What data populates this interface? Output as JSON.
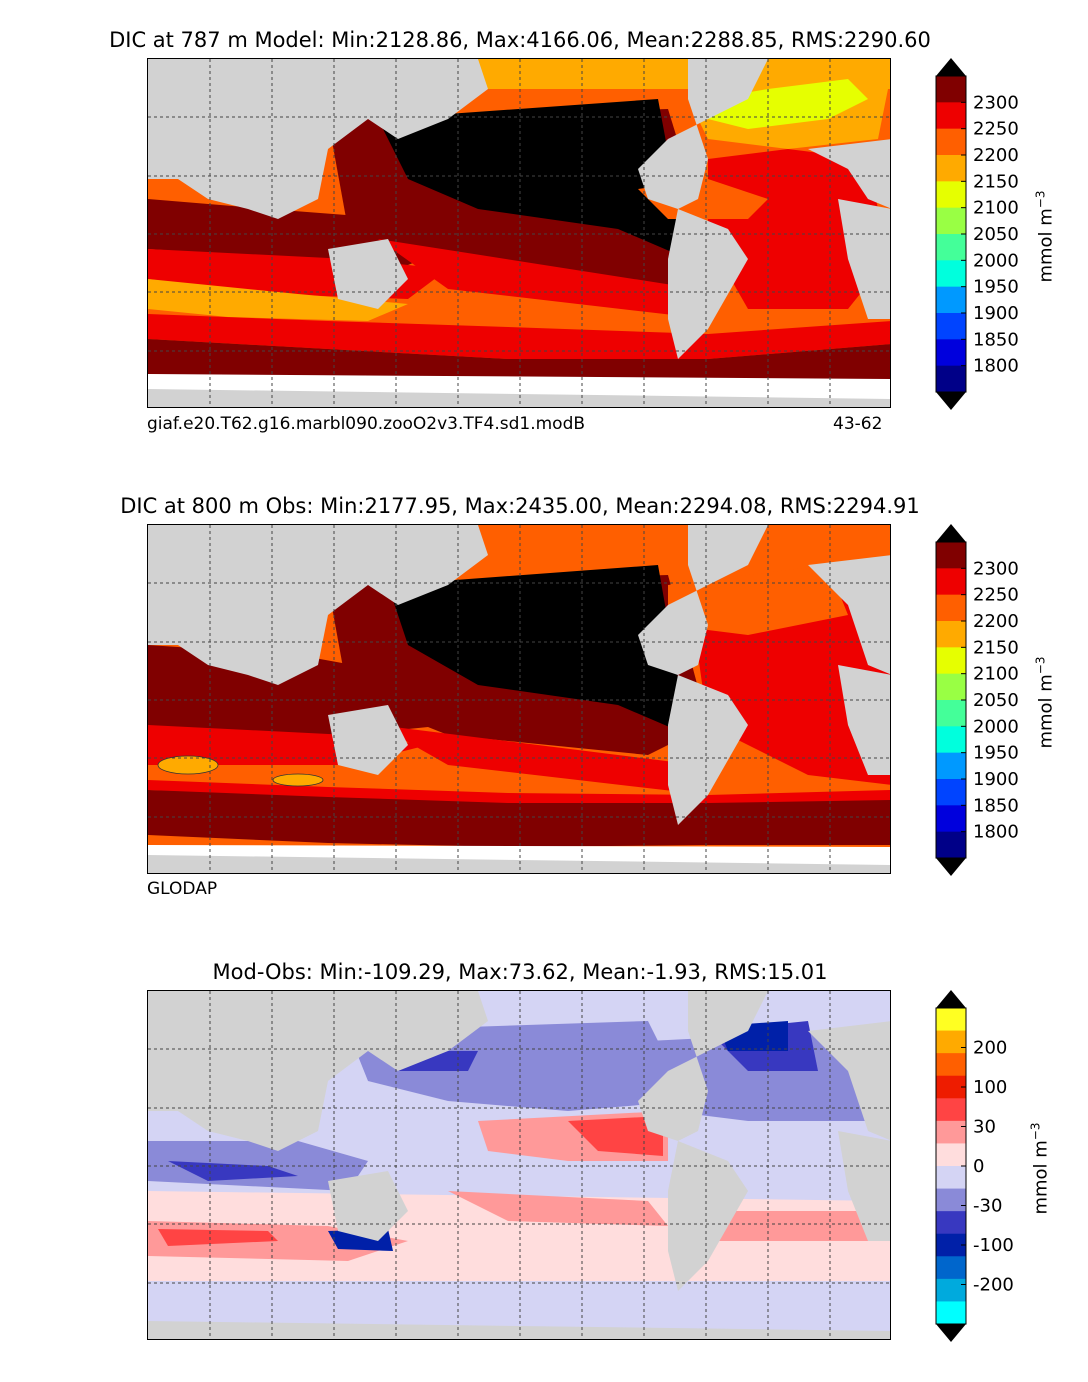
{
  "land_color": "#d2d2d2",
  "chart_data": [
    {
      "type": "heatmap",
      "title": "DIC at 787 m Model: Min:2128.86, Max:4166.06, Mean:2288.85, RMS:2290.60",
      "footer_left": "giaf.e20.T62.g16.marbl090.zooO2v3.TF4.sd1.modB",
      "footer_right": "43-62",
      "colorbar": {
        "label": "mmol m",
        "label_exp": "−3",
        "ticks": [
          "2300",
          "2250",
          "2200",
          "2150",
          "2100",
          "2050",
          "2000",
          "1950",
          "1900",
          "1850",
          "1800"
        ],
        "colors": [
          "#800000",
          "#ee0000",
          "#ff5f00",
          "#ffaa00",
          "#e6ff00",
          "#99ff44",
          "#44ff99",
          "#00ffdd",
          "#0099ff",
          "#0044ff",
          "#0000dd",
          "#000088"
        ],
        "over_color": "#000000",
        "under_color": "#000000"
      }
    },
    {
      "type": "heatmap",
      "title": "DIC at 800 m Obs: Min:2177.95, Max:2435.00, Mean:2294.08, RMS:2294.91",
      "footer_left": "GLODAP",
      "colorbar": {
        "label": "mmol m",
        "label_exp": "−3",
        "ticks": [
          "2300",
          "2250",
          "2200",
          "2150",
          "2100",
          "2050",
          "2000",
          "1950",
          "1900",
          "1850",
          "1800"
        ],
        "colors": [
          "#800000",
          "#ee0000",
          "#ff5f00",
          "#ffaa00",
          "#e6ff00",
          "#99ff44",
          "#44ff99",
          "#00ffdd",
          "#0099ff",
          "#0044ff",
          "#0000dd",
          "#000088"
        ],
        "over_color": "#000000",
        "under_color": "#000000"
      }
    },
    {
      "type": "heatmap",
      "title": "Mod-Obs: Min:-109.29, Max:73.62, Mean:-1.93, RMS:15.01",
      "colorbar": {
        "label": "mmol m",
        "label_exp": "−3",
        "ticks": [
          "200",
          "100",
          "30",
          "0",
          "-30",
          "-100",
          "-200"
        ],
        "colors": [
          "#ffff22",
          "#ffaa00",
          "#ff5f00",
          "#ee1c00",
          "#ff4444",
          "#ff9999",
          "#ffdddd",
          "#d4d4f4",
          "#8a8ad8",
          "#3838c0",
          "#0020a8",
          "#0066cc",
          "#00aadd",
          "#00ffff"
        ],
        "over_color": "#000000",
        "under_color": "#000000"
      }
    }
  ]
}
